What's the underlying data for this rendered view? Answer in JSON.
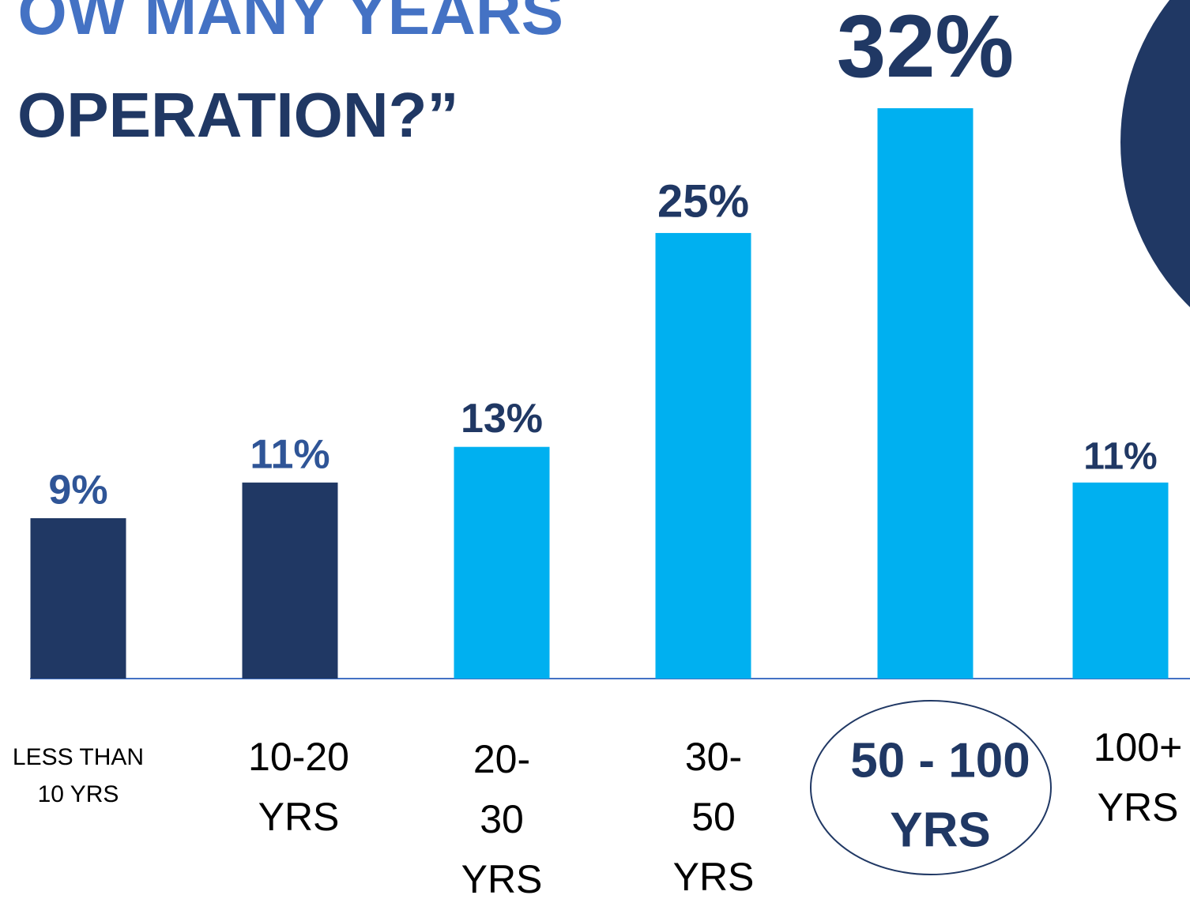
{
  "chart_data": {
    "type": "bar",
    "title": [
      "OW MANY YEARS",
      "OPERATION?”"
    ],
    "categories": [
      [
        "LESS THAN",
        "10 YRS"
      ],
      [
        "10-20",
        "YRS"
      ],
      [
        "20-",
        "30",
        "YRS"
      ],
      [
        "30-",
        "50",
        "YRS"
      ],
      [
        "50 - 100",
        "YRS"
      ],
      [
        "100+",
        "YRS"
      ]
    ],
    "values": [
      9,
      11,
      13,
      25,
      32,
      11
    ],
    "value_labels": [
      "9%",
      "11%",
      "13%",
      "25%",
      "32%",
      "11%"
    ],
    "colors": [
      "#203864",
      "#203864",
      "#00b0f0",
      "#00b0f0",
      "#00b0f0",
      "#00b0f0"
    ],
    "ylim": [
      0,
      32
    ]
  }
}
